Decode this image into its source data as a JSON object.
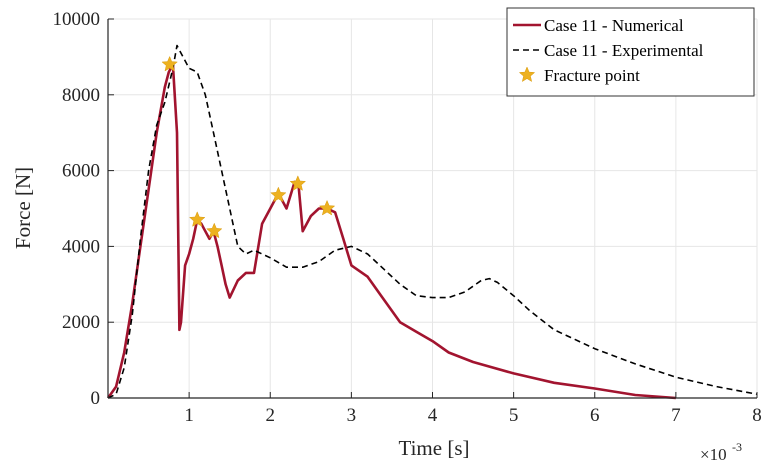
{
  "chart_data": {
    "type": "line",
    "title": "",
    "xlabel": "Time [s]",
    "ylabel": "Force [N]",
    "x_exponent_label": "×10",
    "x_exponent_power": "-3",
    "xlim": [
      0,
      8
    ],
    "ylim": [
      0,
      10000
    ],
    "x_ticks": [
      1,
      2,
      3,
      4,
      5,
      6,
      7,
      8
    ],
    "x_tick_labels": [
      "1",
      "2",
      "3",
      "4",
      "5",
      "6",
      "7",
      "8"
    ],
    "y_ticks": [
      0,
      2000,
      4000,
      6000,
      8000,
      10000
    ],
    "y_tick_labels": [
      "0",
      "2000",
      "4000",
      "6000",
      "8000",
      "10000"
    ],
    "grid": true,
    "legend_position": "top-right",
    "colors": {
      "numerical": "#a2142f",
      "experimental": "#000000",
      "fracture": "#edb120",
      "grid": "#e6e6e6",
      "axis": "#262626"
    },
    "series": [
      {
        "name": "Case 11 - Numerical",
        "style": "solid",
        "x": [
          0,
          0.1,
          0.2,
          0.3,
          0.4,
          0.5,
          0.6,
          0.7,
          0.75,
          0.8,
          0.85,
          0.88,
          0.9,
          0.95,
          1.0,
          1.05,
          1.1,
          1.15,
          1.2,
          1.25,
          1.3,
          1.35,
          1.4,
          1.45,
          1.5,
          1.6,
          1.7,
          1.8,
          1.9,
          2.0,
          2.1,
          2.2,
          2.3,
          2.35,
          2.4,
          2.5,
          2.6,
          2.7,
          2.8,
          2.9,
          3.0,
          3.2,
          3.4,
          3.6,
          3.8,
          4.0,
          4.2,
          4.5,
          5.0,
          5.5,
          6.0,
          6.5,
          7.0
        ],
        "values": [
          0,
          300,
          1200,
          2500,
          4000,
          5500,
          7000,
          8200,
          8600,
          8800,
          7000,
          1800,
          2000,
          3500,
          3800,
          4200,
          4700,
          4600,
          4400,
          4200,
          4400,
          4000,
          3500,
          3000,
          2650,
          3100,
          3300,
          3300,
          4600,
          5000,
          5400,
          5000,
          5700,
          5600,
          4400,
          4800,
          5000,
          5000,
          4900,
          4200,
          3500,
          3200,
          2600,
          2000,
          1750,
          1500,
          1200,
          950,
          650,
          400,
          250,
          80,
          0
        ]
      },
      {
        "name": "Case 11 - Experimental",
        "style": "dashed",
        "x": [
          0,
          0.1,
          0.2,
          0.3,
          0.4,
          0.5,
          0.6,
          0.7,
          0.8,
          0.85,
          0.9,
          1.0,
          1.1,
          1.2,
          1.3,
          1.4,
          1.5,
          1.6,
          1.7,
          1.8,
          2.0,
          2.2,
          2.4,
          2.6,
          2.8,
          3.0,
          3.2,
          3.4,
          3.6,
          3.8,
          4.0,
          4.2,
          4.4,
          4.6,
          4.7,
          4.8,
          5.0,
          5.2,
          5.5,
          6.0,
          6.5,
          7.0,
          7.5,
          8.0
        ],
        "values": [
          0,
          100,
          800,
          2200,
          4200,
          6000,
          7200,
          7800,
          8700,
          9300,
          9100,
          8700,
          8600,
          8000,
          7000,
          6000,
          5000,
          4000,
          3800,
          3900,
          3700,
          3450,
          3450,
          3600,
          3900,
          4000,
          3800,
          3400,
          3000,
          2700,
          2650,
          2650,
          2800,
          3100,
          3150,
          3050,
          2700,
          2300,
          1800,
          1300,
          900,
          550,
          300,
          100
        ]
      },
      {
        "name": "Fracture point",
        "style": "marker",
        "x": [
          0.76,
          1.1,
          1.31,
          2.1,
          2.34,
          2.7
        ],
        "values": [
          8800,
          4700,
          4400,
          5350,
          5650,
          5000
        ]
      }
    ]
  }
}
